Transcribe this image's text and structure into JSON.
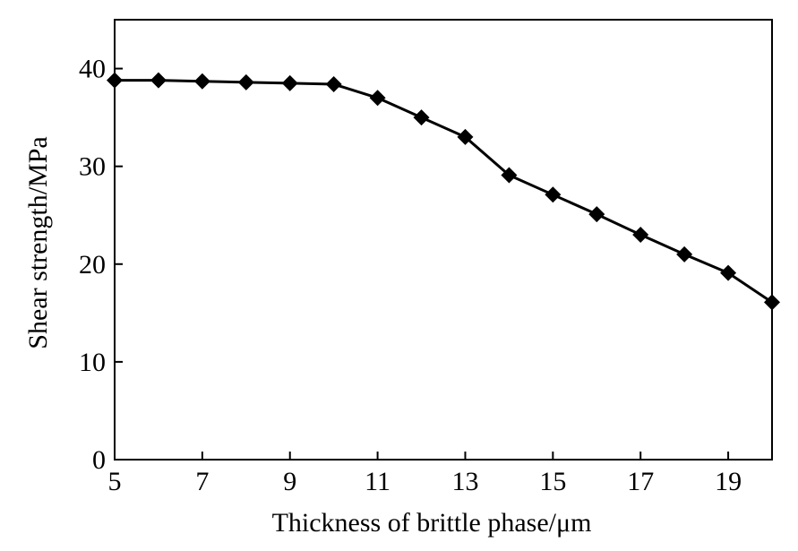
{
  "chart_data": {
    "type": "line",
    "title": "",
    "xlabel": "Thickness of brittle phase/μm",
    "ylabel": "Shear strength/MPa",
    "xlim": [
      5,
      20
    ],
    "ylim": [
      0,
      45
    ],
    "x_ticks": [
      5,
      7,
      9,
      11,
      13,
      15,
      17,
      19
    ],
    "y_ticks": [
      0,
      10,
      20,
      30,
      40
    ],
    "grid": false,
    "legend": "none",
    "series": [
      {
        "marker": "diamond",
        "color": "#000000",
        "x": [
          5,
          6,
          7,
          8,
          9,
          10,
          11,
          12,
          13,
          14,
          15,
          16,
          17,
          18,
          19,
          20
        ],
        "y": [
          38.8,
          38.8,
          38.7,
          38.6,
          38.5,
          38.4,
          37.0,
          35.0,
          33.0,
          29.1,
          27.1,
          25.1,
          23.0,
          21.0,
          19.1,
          16.1
        ]
      }
    ]
  }
}
